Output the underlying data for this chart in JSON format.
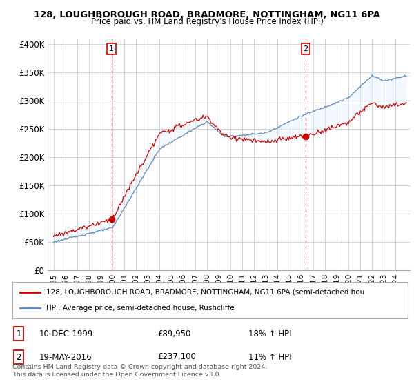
{
  "title_line1": "128, LOUGHBOROUGH ROAD, BRADMORE, NOTTINGHAM, NG11 6PA",
  "title_line2": "Price paid vs. HM Land Registry's House Price Index (HPI)",
  "legend_label_red": "128, LOUGHBOROUGH ROAD, BRADMORE, NOTTINGHAM, NG11 6PA (semi-detached hou",
  "legend_label_blue": "HPI: Average price, semi-detached house, Rushcliffe",
  "annotation1_label": "1",
  "annotation1_date": "10-DEC-1999",
  "annotation1_price": "£89,950",
  "annotation1_hpi": "18% ↑ HPI",
  "annotation2_label": "2",
  "annotation2_date": "19-MAY-2016",
  "annotation2_price": "£237,100",
  "annotation2_hpi": "11% ↑ HPI",
  "footnote": "Contains HM Land Registry data © Crown copyright and database right 2024.\nThis data is licensed under the Open Government Licence v3.0.",
  "sale1_year": 1999.93,
  "sale1_value": 89950,
  "sale2_year": 2016.38,
  "sale2_value": 237100,
  "red_color": "#cc0000",
  "blue_color": "#5588bb",
  "fill_color": "#ddeeff",
  "bg_color": "#ffffff",
  "grid_color": "#cccccc",
  "ylim_min": 0,
  "ylim_max": 410000,
  "xlim_min": 1994.5,
  "xlim_max": 2025.2
}
